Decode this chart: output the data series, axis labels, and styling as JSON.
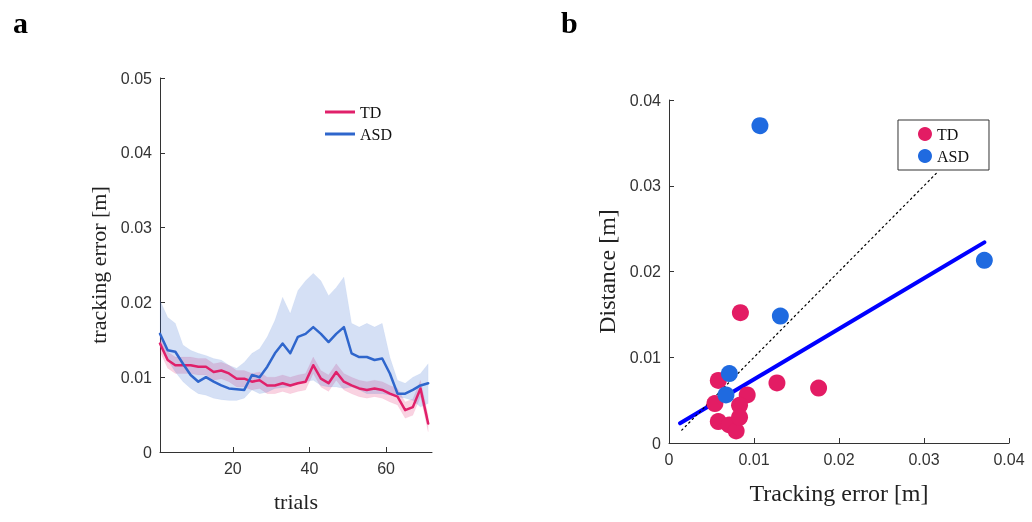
{
  "chart_data": [
    {
      "type": "line",
      "title": "a",
      "xlabel": "trials",
      "ylabel": "tracking error [m]",
      "xlim": [
        1,
        72
      ],
      "xticks": [
        20,
        40,
        60
      ],
      "ylim": [
        0,
        0.05
      ],
      "yticks": [
        0,
        0.01,
        0.02,
        0.03,
        0.04,
        0.05
      ],
      "legend": "top right",
      "marker": "none",
      "grid": false,
      "x": [
        1,
        3,
        5,
        7,
        9,
        11,
        13,
        15,
        17,
        19,
        21,
        23,
        25,
        27,
        29,
        31,
        33,
        35,
        37,
        39,
        41,
        43,
        45,
        47,
        49,
        51,
        53,
        55,
        57,
        59,
        61,
        63,
        65,
        67,
        69,
        71
      ],
      "series": [
        {
          "name": "TD",
          "color": "#e0206a",
          "values": [
            0.0145,
            0.0123,
            0.0116,
            0.0116,
            0.0116,
            0.0114,
            0.0114,
            0.0107,
            0.0109,
            0.0105,
            0.0098,
            0.0098,
            0.0094,
            0.0096,
            0.0089,
            0.0089,
            0.0092,
            0.0089,
            0.0092,
            0.0094,
            0.0116,
            0.0098,
            0.0092,
            0.0107,
            0.0094,
            0.0089,
            0.0085,
            0.0083,
            0.0085,
            0.0083,
            0.0078,
            0.0074,
            0.0056,
            0.006,
            0.0085,
            0.0038
          ],
          "upper": [
            0.0156,
            0.0134,
            0.0127,
            0.0127,
            0.0127,
            0.0125,
            0.0125,
            0.0118,
            0.012,
            0.0116,
            0.0109,
            0.0109,
            0.0105,
            0.0107,
            0.01,
            0.01,
            0.0103,
            0.01,
            0.0103,
            0.0105,
            0.0127,
            0.0109,
            0.0103,
            0.0118,
            0.0105,
            0.01,
            0.0096,
            0.0094,
            0.0096,
            0.0094,
            0.0089,
            0.0085,
            0.0067,
            0.0071,
            0.0096,
            0.0049
          ],
          "lower": [
            0.0134,
            0.0112,
            0.0105,
            0.0105,
            0.0105,
            0.0103,
            0.0103,
            0.0096,
            0.0098,
            0.0094,
            0.0087,
            0.0087,
            0.0083,
            0.0085,
            0.0078,
            0.0078,
            0.0081,
            0.0078,
            0.0081,
            0.0083,
            0.0105,
            0.0087,
            0.0081,
            0.0096,
            0.0083,
            0.0078,
            0.0074,
            0.0072,
            0.0074,
            0.0072,
            0.0067,
            0.0063,
            0.0045,
            0.0049,
            0.0074,
            0.0027
          ]
        },
        {
          "name": "ASD",
          "color": "#2f66cc",
          "values": [
            0.0158,
            0.0136,
            0.0134,
            0.0118,
            0.0103,
            0.0094,
            0.01,
            0.0094,
            0.0089,
            0.0085,
            0.0084,
            0.0083,
            0.0103,
            0.01,
            0.0114,
            0.0132,
            0.0145,
            0.0132,
            0.0154,
            0.0158,
            0.0167,
            0.0158,
            0.0147,
            0.0158,
            0.0167,
            0.0132,
            0.0127,
            0.0127,
            0.0123,
            0.0125,
            0.0105,
            0.0078,
            0.0078,
            0.0083,
            0.0089,
            0.0092
          ],
          "upper": [
            0.0203,
            0.018,
            0.0172,
            0.0143,
            0.0136,
            0.0132,
            0.0129,
            0.0125,
            0.0123,
            0.0116,
            0.0112,
            0.012,
            0.0132,
            0.0138,
            0.0154,
            0.0176,
            0.0207,
            0.0185,
            0.0216,
            0.0229,
            0.0239,
            0.0229,
            0.0209,
            0.022,
            0.0234,
            0.0172,
            0.0167,
            0.0172,
            0.0167,
            0.0172,
            0.0127,
            0.0096,
            0.0092,
            0.01,
            0.0105,
            0.0118
          ],
          "lower": [
            0.014,
            0.0123,
            0.0107,
            0.0094,
            0.0085,
            0.0078,
            0.0076,
            0.0072,
            0.007,
            0.0069,
            0.0069,
            0.0072,
            0.0083,
            0.0078,
            0.008,
            0.0085,
            0.0086,
            0.0087,
            0.0092,
            0.0094,
            0.0096,
            0.0089,
            0.0087,
            0.0087,
            0.0085,
            0.0087,
            0.0083,
            0.0078,
            0.0078,
            0.0078,
            0.0076,
            0.0074,
            0.0072,
            0.0069,
            0.006,
            0.0065
          ]
        }
      ]
    },
    {
      "type": "scatter",
      "title": "b",
      "xlabel": "Tracking error [m]",
      "ylabel": "Distance [m]",
      "xlim": [
        0,
        0.04
      ],
      "xticks": [
        0,
        0.01,
        0.02,
        0.03,
        0.04
      ],
      "ylim": [
        0,
        0.04
      ],
      "yticks": [
        0,
        0.01,
        0.02,
        0.03,
        0.04
      ],
      "legend": "top right",
      "marker": "circle",
      "grid": false,
      "series": [
        {
          "name": "TD",
          "color": "#e31c64",
          "x": [
            0.0084,
            0.0127,
            0.0176,
            0.0058,
            0.0092,
            0.0058,
            0.0071,
            0.0079,
            0.0083,
            0.0083,
            0.0054
          ],
          "values": [
            0.0152,
            0.007,
            0.0064,
            0.0073,
            0.0056,
            0.0025,
            0.0021,
            0.0014,
            0.0044,
            0.003,
            0.0046
          ]
        },
        {
          "name": "ASD",
          "color": "#1f6ae0",
          "x": [
            0.0107,
            0.0131,
            0.0371,
            0.0071,
            0.0067
          ],
          "values": [
            0.037,
            0.0148,
            0.0213,
            0.0081,
            0.0056
          ]
        },
        {
          "type": "line",
          "color": "#0000ff",
          "marker": "none",
          "x": [
            0.0013,
            0.0371
          ],
          "values": [
            0.0023,
            0.0234
          ]
        },
        {
          "type": "line",
          "color": "#000000",
          "marker": "none",
          "line_style": "dotted",
          "x": [
            0.0015,
            0.0315
          ],
          "values": [
            0.0015,
            0.0315
          ]
        }
      ]
    }
  ]
}
